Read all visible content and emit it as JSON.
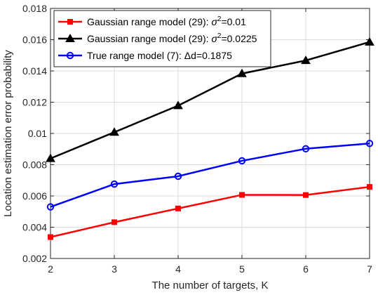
{
  "chart_data": {
    "type": "line",
    "xlabel": "The number of targets, K",
    "ylabel": "Location estimation error probability",
    "xlim": [
      2,
      7
    ],
    "ylim": [
      0.002,
      0.018
    ],
    "x": [
      2,
      3,
      4,
      5,
      6,
      7
    ],
    "xticks": [
      "2",
      "3",
      "4",
      "5",
      "6",
      "7"
    ],
    "yticks": [
      "0.002",
      "0.004",
      "0.006",
      "0.008",
      "0.01",
      "0.012",
      "0.014",
      "0.016",
      "0.018"
    ],
    "grid": true,
    "legend_position": "top-left",
    "series": [
      {
        "name": "Gaussian range model (29): σ²=0.01",
        "legend_prefix": "Gaussian range model (29): ",
        "legend_symbol": "σ",
        "legend_sup": "2",
        "legend_suffix": "=0.01",
        "color": "#ff0000",
        "marker": "square",
        "values": [
          0.00337,
          0.00432,
          0.0052,
          0.00607,
          0.00606,
          0.00658
        ]
      },
      {
        "name": "Gaussian range model (29): σ²=0.0225",
        "legend_prefix": "Gaussian range model (29): ",
        "legend_symbol": "σ",
        "legend_sup": "2",
        "legend_suffix": "=0.0225",
        "color": "#000000",
        "marker": "triangle",
        "values": [
          0.0084,
          0.01008,
          0.01178,
          0.01383,
          0.01467,
          0.01585
        ]
      },
      {
        "name": "True range model (7): Δd=0.1875",
        "legend_prefix": "True range model (7): ",
        "legend_symbol": "Δ",
        "legend_sup": "",
        "legend_suffix": "d=0.1875",
        "color": "#0000ff",
        "marker": "circle",
        "values": [
          0.0053,
          0.00676,
          0.00726,
          0.00825,
          0.00902,
          0.00936
        ]
      }
    ]
  }
}
